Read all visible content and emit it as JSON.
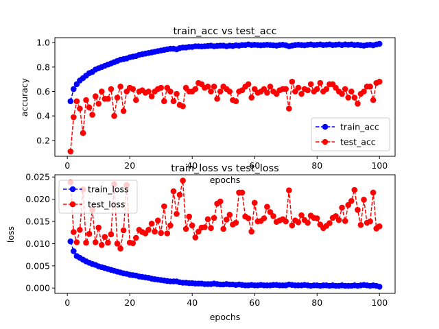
{
  "chart_data": [
    {
      "type": "line",
      "title": "train_acc vs test_acc",
      "xlabel": "epochs",
      "ylabel": "accuracy",
      "xlim": [
        -4,
        105
      ],
      "ylim": [
        0.07,
        1.04
      ],
      "xticks": [
        0,
        20,
        40,
        60,
        80,
        100
      ],
      "yticks": [
        0.2,
        0.4,
        0.6,
        0.8,
        1.0
      ],
      "ytick_labels": [
        "0.2",
        "0.4",
        "0.6",
        "0.8",
        "1.0"
      ],
      "legend_position": "lower-right",
      "series": [
        {
          "name": "train_acc",
          "color": "#0000ff",
          "x": [
            1,
            2,
            3,
            4,
            5,
            6,
            7,
            8,
            9,
            10,
            11,
            12,
            13,
            14,
            15,
            16,
            17,
            18,
            19,
            20,
            21,
            22,
            23,
            24,
            25,
            26,
            27,
            28,
            29,
            30,
            31,
            32,
            33,
            34,
            35,
            36,
            37,
            38,
            39,
            40,
            41,
            42,
            43,
            44,
            45,
            46,
            47,
            48,
            49,
            50,
            51,
            52,
            53,
            54,
            55,
            56,
            57,
            58,
            59,
            60,
            61,
            62,
            63,
            64,
            65,
            66,
            67,
            68,
            69,
            70,
            71,
            72,
            73,
            74,
            75,
            76,
            77,
            78,
            79,
            80,
            81,
            82,
            83,
            84,
            85,
            86,
            87,
            88,
            89,
            90,
            91,
            92,
            93,
            94,
            95,
            96,
            97,
            98,
            99,
            100
          ],
          "values": [
            0.52,
            0.62,
            0.66,
            0.69,
            0.71,
            0.73,
            0.75,
            0.76,
            0.78,
            0.79,
            0.8,
            0.81,
            0.82,
            0.83,
            0.84,
            0.85,
            0.86,
            0.865,
            0.87,
            0.88,
            0.885,
            0.89,
            0.9,
            0.905,
            0.91,
            0.915,
            0.92,
            0.925,
            0.93,
            0.935,
            0.94,
            0.945,
            0.95,
            0.95,
            0.945,
            0.955,
            0.96,
            0.96,
            0.965,
            0.965,
            0.97,
            0.97,
            0.968,
            0.97,
            0.972,
            0.975,
            0.97,
            0.973,
            0.975,
            0.975,
            0.97,
            0.975,
            0.972,
            0.978,
            0.975,
            0.98,
            0.98,
            0.985,
            0.98,
            0.982,
            0.98,
            0.978,
            0.98,
            0.982,
            0.98,
            0.978,
            0.975,
            0.98,
            0.982,
            0.978,
            0.97,
            0.975,
            0.98,
            0.982,
            0.98,
            0.978,
            0.982,
            0.985,
            0.98,
            0.982,
            0.985,
            0.98,
            0.982,
            0.985,
            0.98,
            0.982,
            0.985,
            0.98,
            0.985,
            0.982,
            0.985,
            0.98,
            0.982,
            0.978,
            0.975,
            0.98,
            0.982,
            0.978,
            0.985,
            0.99
          ]
        },
        {
          "name": "test_acc",
          "color": "#ff0000",
          "x": [
            1,
            2,
            3,
            4,
            5,
            6,
            7,
            8,
            9,
            10,
            11,
            12,
            13,
            14,
            15,
            16,
            17,
            18,
            19,
            20,
            21,
            22,
            23,
            24,
            25,
            26,
            27,
            28,
            29,
            30,
            31,
            32,
            33,
            34,
            35,
            36,
            37,
            38,
            39,
            40,
            41,
            42,
            43,
            44,
            45,
            46,
            47,
            48,
            49,
            50,
            51,
            52,
            53,
            54,
            55,
            56,
            57,
            58,
            59,
            60,
            61,
            62,
            63,
            64,
            65,
            66,
            67,
            68,
            69,
            70,
            71,
            72,
            73,
            74,
            75,
            76,
            77,
            78,
            79,
            80,
            81,
            82,
            83,
            84,
            85,
            86,
            87,
            88,
            89,
            90,
            91,
            92,
            93,
            94,
            95,
            96,
            97,
            98,
            99,
            100
          ],
          "values": [
            0.11,
            0.39,
            0.52,
            0.46,
            0.26,
            0.53,
            0.47,
            0.41,
            0.56,
            0.5,
            0.6,
            0.54,
            0.54,
            0.62,
            0.4,
            0.55,
            0.64,
            0.44,
            0.6,
            0.63,
            0.62,
            0.53,
            0.6,
            0.61,
            0.59,
            0.6,
            0.56,
            0.6,
            0.62,
            0.63,
            0.52,
            0.63,
            0.6,
            0.52,
            0.58,
            0.49,
            0.48,
            0.63,
            0.6,
            0.6,
            0.62,
            0.67,
            0.66,
            0.63,
            0.64,
            0.6,
            0.64,
            0.54,
            0.6,
            0.64,
            0.62,
            0.6,
            0.53,
            0.52,
            0.6,
            0.61,
            0.64,
            0.66,
            0.55,
            0.62,
            0.59,
            0.6,
            0.62,
            0.59,
            0.64,
            0.6,
            0.58,
            0.61,
            0.62,
            0.62,
            0.46,
            0.68,
            0.6,
            0.63,
            0.58,
            0.62,
            0.61,
            0.66,
            0.6,
            0.62,
            0.67,
            0.6,
            0.62,
            0.66,
            0.66,
            0.63,
            0.6,
            0.58,
            0.62,
            0.55,
            0.6,
            0.55,
            0.5,
            0.58,
            0.6,
            0.64,
            0.64,
            0.53,
            0.67,
            0.68
          ]
        }
      ]
    },
    {
      "type": "line",
      "title": "train_loss vs test_loss",
      "xlabel": "epochs",
      "ylabel": "loss",
      "xlim": [
        -4,
        105
      ],
      "ylim": [
        -0.0012,
        0.0255
      ],
      "xticks": [
        0,
        20,
        40,
        60,
        80,
        100
      ],
      "yticks": [
        0.0,
        0.005,
        0.01,
        0.015,
        0.02,
        0.025
      ],
      "ytick_labels": [
        "0.000",
        "0.005",
        "0.010",
        "0.015",
        "0.020",
        "0.025"
      ],
      "legend_position": "upper-left",
      "series": [
        {
          "name": "train_loss",
          "color": "#0000ff",
          "x": [
            1,
            2,
            3,
            4,
            5,
            6,
            7,
            8,
            9,
            10,
            11,
            12,
            13,
            14,
            15,
            16,
            17,
            18,
            19,
            20,
            21,
            22,
            23,
            24,
            25,
            26,
            27,
            28,
            29,
            30,
            31,
            32,
            33,
            34,
            35,
            36,
            37,
            38,
            39,
            40,
            41,
            42,
            43,
            44,
            45,
            46,
            47,
            48,
            49,
            50,
            51,
            52,
            53,
            54,
            55,
            56,
            57,
            58,
            59,
            60,
            61,
            62,
            63,
            64,
            65,
            66,
            67,
            68,
            69,
            70,
            71,
            72,
            73,
            74,
            75,
            76,
            77,
            78,
            79,
            80,
            81,
            82,
            83,
            84,
            85,
            86,
            87,
            88,
            89,
            90,
            91,
            92,
            93,
            94,
            95,
            96,
            97,
            98,
            99,
            100
          ],
          "values": [
            0.0105,
            0.0083,
            0.0072,
            0.0068,
            0.0064,
            0.006,
            0.0057,
            0.0054,
            0.0052,
            0.0049,
            0.0047,
            0.0045,
            0.0043,
            0.0041,
            0.0039,
            0.0037,
            0.0035,
            0.0033,
            0.0032,
            0.003,
            0.0029,
            0.0028,
            0.0026,
            0.0025,
            0.0024,
            0.0023,
            0.0021,
            0.002,
            0.0019,
            0.0018,
            0.0017,
            0.0016,
            0.0015,
            0.0015,
            0.0015,
            0.0013,
            0.0012,
            0.0012,
            0.0011,
            0.0011,
            0.001,
            0.001,
            0.001,
            0.0009,
            0.0009,
            0.0009,
            0.001,
            0.0009,
            0.0008,
            0.0008,
            0.0009,
            0.0008,
            0.0008,
            0.0007,
            0.0008,
            0.0007,
            0.0006,
            0.0006,
            0.0007,
            0.0006,
            0.0006,
            0.0007,
            0.0006,
            0.0006,
            0.0006,
            0.0007,
            0.0007,
            0.0006,
            0.0006,
            0.0006,
            0.0008,
            0.0007,
            0.0006,
            0.0006,
            0.0006,
            0.0007,
            0.0006,
            0.0005,
            0.0006,
            0.0006,
            0.0005,
            0.0006,
            0.0006,
            0.0005,
            0.0006,
            0.0005,
            0.0005,
            0.0006,
            0.0005,
            0.0005,
            0.0005,
            0.0006,
            0.0005,
            0.0006,
            0.0007,
            0.0006,
            0.0005,
            0.0006,
            0.0005,
            0.0003
          ]
        },
        {
          "name": "test_loss",
          "color": "#ff0000",
          "x": [
            1,
            2,
            3,
            4,
            5,
            6,
            7,
            8,
            9,
            10,
            11,
            12,
            13,
            14,
            15,
            16,
            17,
            18,
            19,
            20,
            21,
            22,
            23,
            24,
            25,
            26,
            27,
            28,
            29,
            30,
            31,
            32,
            33,
            34,
            35,
            36,
            37,
            38,
            39,
            40,
            41,
            42,
            43,
            44,
            45,
            46,
            47,
            48,
            49,
            50,
            51,
            52,
            53,
            54,
            55,
            56,
            57,
            58,
            59,
            60,
            61,
            62,
            63,
            64,
            65,
            66,
            67,
            68,
            69,
            70,
            71,
            72,
            73,
            74,
            75,
            76,
            77,
            78,
            79,
            80,
            81,
            82,
            83,
            84,
            85,
            86,
            87,
            88,
            89,
            90,
            91,
            92,
            93,
            94,
            95,
            96,
            97,
            98,
            99,
            100
          ],
          "values": [
            0.0238,
            0.0126,
            0.0103,
            0.0131,
            0.0222,
            0.0102,
            0.0122,
            0.0176,
            0.0103,
            0.0136,
            0.0097,
            0.0115,
            0.0102,
            0.0121,
            0.0234,
            0.01,
            0.0089,
            0.013,
            0.0232,
            0.0102,
            0.0101,
            0.0113,
            0.0131,
            0.0126,
            0.0123,
            0.0131,
            0.0145,
            0.0127,
            0.0152,
            0.0124,
            0.0184,
            0.0123,
            0.0141,
            0.0218,
            0.0167,
            0.021,
            0.0242,
            0.0133,
            0.0161,
            0.0141,
            0.0114,
            0.0127,
            0.0136,
            0.0137,
            0.0155,
            0.0135,
            0.0158,
            0.019,
            0.0195,
            0.0133,
            0.0154,
            0.0165,
            0.0143,
            0.0147,
            0.0215,
            0.0215,
            0.0161,
            0.0157,
            0.0127,
            0.0192,
            0.015,
            0.0151,
            0.0157,
            0.0183,
            0.0171,
            0.0162,
            0.0149,
            0.0152,
            0.0155,
            0.015,
            0.022,
            0.0141,
            0.0152,
            0.0148,
            0.0164,
            0.0153,
            0.0147,
            0.0163,
            0.0158,
            0.0157,
            0.0143,
            0.0135,
            0.014,
            0.0146,
            0.0158,
            0.0162,
            0.0153,
            0.0181,
            0.0151,
            0.0187,
            0.0196,
            0.0221,
            0.0176,
            0.0142,
            0.0199,
            0.0147,
            0.015,
            0.0215,
            0.0134,
            0.0139
          ]
        }
      ]
    }
  ]
}
